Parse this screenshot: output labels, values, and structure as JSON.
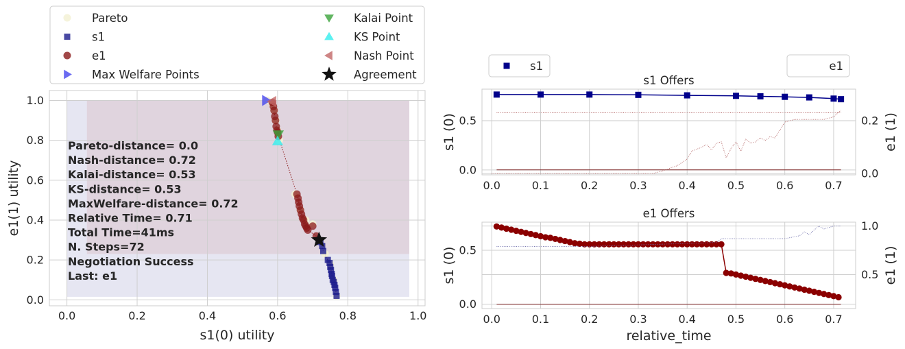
{
  "chart_data": [
    {
      "id": "utility",
      "type": "scatter",
      "xlabel": "s1(0) utility",
      "ylabel": "e1(1) utility",
      "xlim": [
        -0.05,
        1.02
      ],
      "ylim": [
        -0.03,
        1.05
      ],
      "xticks": [
        "0.0",
        "0.2",
        "0.4",
        "0.6",
        "0.8",
        "1.0"
      ],
      "yticks": [
        "0.0",
        "0.2",
        "0.4",
        "0.6",
        "0.8",
        "1.0"
      ],
      "grid": true,
      "legend": [
        {
          "label": "Pareto",
          "marker": "circle",
          "color": "#f3f0d2"
        },
        {
          "label": "s1",
          "marker": "square",
          "color": "#1c1c8c"
        },
        {
          "label": "e1",
          "marker": "circle",
          "color": "#8b1a1a"
        },
        {
          "label": "Max Welfare Points",
          "marker": "triangle-right",
          "color": "#4646ee"
        },
        {
          "label": "Kalai Point",
          "marker": "triangle-down",
          "color": "#3aa33a"
        },
        {
          "label": "KS Point",
          "marker": "triangle-up",
          "color": "#33eeee"
        },
        {
          "label": "Nash Point",
          "marker": "triangle-left",
          "color": "#c26767"
        },
        {
          "label": "Agreement",
          "marker": "star",
          "color": "#111111"
        }
      ],
      "regions": [
        {
          "x": [
            0.0,
            0.975
          ],
          "y": [
            0.015,
            1.0
          ],
          "color": "#e6e6f2"
        },
        {
          "x": [
            0.057,
            0.975
          ],
          "y": [
            0.23,
            1.0
          ],
          "color": "#e0d4de"
        }
      ],
      "stats_text": [
        "Pareto-distance=  0.0",
        "Nash-distance= 0.72",
        "Kalai-distance= 0.53",
        "KS-distance= 0.53",
        "MaxWelfare-distance= 0.72",
        "Relative Time= 0.71",
        "Total Time=41ms",
        "N. Steps=72",
        "Negotiation Success",
        "Last: e1"
      ],
      "pareto": [
        [
          0.57,
          1.0
        ],
        [
          0.585,
          0.98
        ],
        [
          0.59,
          0.95
        ],
        [
          0.595,
          0.9
        ],
        [
          0.6,
          0.85
        ],
        [
          0.605,
          0.8
        ],
        [
          0.65,
          0.53
        ],
        [
          0.665,
          0.45
        ],
        [
          0.68,
          0.4
        ],
        [
          0.7,
          0.38
        ],
        [
          0.72,
          0.3
        ],
        [
          0.735,
          0.23
        ],
        [
          0.75,
          0.18
        ],
        [
          0.76,
          0.1
        ],
        [
          0.768,
          0.02
        ]
      ],
      "s1_offers": [
        [
          0.718,
          0.3
        ],
        [
          0.722,
          0.29
        ],
        [
          0.727,
          0.27
        ],
        [
          0.73,
          0.245
        ],
        [
          0.743,
          0.2
        ],
        [
          0.748,
          0.185
        ],
        [
          0.75,
          0.165
        ],
        [
          0.752,
          0.15
        ],
        [
          0.754,
          0.13
        ],
        [
          0.755,
          0.12
        ],
        [
          0.757,
          0.1
        ],
        [
          0.76,
          0.09
        ],
        [
          0.762,
          0.075
        ],
        [
          0.764,
          0.06
        ],
        [
          0.766,
          0.04
        ],
        [
          0.768,
          0.02
        ]
      ],
      "e1_offers": [
        [
          0.585,
          0.99
        ],
        [
          0.588,
          0.97
        ],
        [
          0.59,
          0.95
        ],
        [
          0.592,
          0.92
        ],
        [
          0.594,
          0.9
        ],
        [
          0.596,
          0.87
        ],
        [
          0.598,
          0.85
        ],
        [
          0.6,
          0.84
        ],
        [
          0.602,
          0.82
        ],
        [
          0.655,
          0.53
        ],
        [
          0.658,
          0.51
        ],
        [
          0.66,
          0.49
        ],
        [
          0.662,
          0.47
        ],
        [
          0.665,
          0.45
        ],
        [
          0.668,
          0.43
        ],
        [
          0.671,
          0.41
        ],
        [
          0.674,
          0.4
        ],
        [
          0.677,
          0.38
        ],
        [
          0.68,
          0.37
        ],
        [
          0.683,
          0.36
        ],
        [
          0.686,
          0.35
        ],
        [
          0.7,
          0.37
        ],
        [
          0.71,
          0.32
        ]
      ],
      "max_welfare": [
        [
          0.567,
          1.0
        ]
      ],
      "kalai": [
        [
          0.602,
          0.83
        ]
      ],
      "ks": [
        [
          0.6,
          0.795
        ]
      ],
      "nash": [
        [
          0.585,
          0.995
        ]
      ],
      "agreement": [
        [
          0.718,
          0.3
        ]
      ]
    },
    {
      "id": "s1_offers",
      "type": "line",
      "title": "s1 Offers",
      "ylabel": "s1 (0)",
      "ylabel2": "e1 (1)",
      "xlim": [
        -0.02,
        0.745
      ],
      "ylim": [
        -0.05,
        0.82
      ],
      "ylim2": [
        -0.005,
        0.32
      ],
      "xticks": [
        "0.0",
        "0.1",
        "0.2",
        "0.3",
        "0.4",
        "0.5",
        "0.6",
        "0.7"
      ],
      "yticks": [
        "0.0",
        "0.5"
      ],
      "yticks2": [
        "0.0",
        "0.2"
      ],
      "legend_left": "s1",
      "legend_right": "e1",
      "series": [
        {
          "name": "s1",
          "axis": "left",
          "style": "line-square",
          "color": "#00008b",
          "x": [
            0.01,
            0.1,
            0.2,
            0.3,
            0.4,
            0.5,
            0.55,
            0.6,
            0.65,
            0.7,
            0.715
          ],
          "y": [
            0.765,
            0.765,
            0.765,
            0.762,
            0.757,
            0.752,
            0.747,
            0.742,
            0.736,
            0.724,
            0.718
          ]
        },
        {
          "axis": "left",
          "style": "dotted",
          "color": "#b06060",
          "x": [
            0.01,
            0.715
          ],
          "y": [
            0.58,
            0.58
          ]
        },
        {
          "axis": "left",
          "style": "solid-thin",
          "color": "#7a2020",
          "x": [
            0.01,
            0.715
          ],
          "y": [
            0.0,
            0.0
          ]
        },
        {
          "axis": "right",
          "style": "dotted",
          "color": "#b06060",
          "x": [
            0.0,
            0.33,
            0.35,
            0.38,
            0.4,
            0.41,
            0.43,
            0.44,
            0.45,
            0.46,
            0.47,
            0.48,
            0.49,
            0.5,
            0.51,
            0.52,
            0.53,
            0.54,
            0.55,
            0.56,
            0.57,
            0.58,
            0.59,
            0.6,
            0.62,
            0.65,
            0.68,
            0.7,
            0.715
          ],
          "y": [
            0.0,
            0.0,
            0.01,
            0.03,
            0.055,
            0.085,
            0.1,
            0.11,
            0.09,
            0.115,
            0.12,
            0.06,
            0.095,
            0.12,
            0.085,
            0.13,
            0.115,
            0.12,
            0.135,
            0.125,
            0.14,
            0.135,
            0.165,
            0.195,
            0.205,
            0.205,
            0.205,
            0.215,
            0.24
          ]
        }
      ]
    },
    {
      "id": "e1_offers",
      "type": "line",
      "title": "e1 Offers",
      "xlabel": "relative_time",
      "ylabel": "s1 (0)",
      "ylabel2": "e1 (1)",
      "xlim": [
        -0.02,
        0.745
      ],
      "ylim": [
        -0.04,
        0.76
      ],
      "ylim2": [
        0.15,
        1.04
      ],
      "xticks": [
        "0.0",
        "0.1",
        "0.2",
        "0.3",
        "0.4",
        "0.5",
        "0.6",
        "0.7"
      ],
      "yticks": [
        "0.0",
        "0.5"
      ],
      "yticks2": [
        "0.5",
        "1.0"
      ],
      "series": [
        {
          "name": "e1",
          "axis": "left",
          "style": "line-circle",
          "color": "#8b0000",
          "x": [
            0.01,
            0.02,
            0.03,
            0.04,
            0.05,
            0.06,
            0.07,
            0.08,
            0.09,
            0.1,
            0.11,
            0.12,
            0.13,
            0.14,
            0.15,
            0.16,
            0.17,
            0.18,
            0.19,
            0.2,
            0.21,
            0.22,
            0.23,
            0.24,
            0.25,
            0.26,
            0.27,
            0.28,
            0.29,
            0.3,
            0.31,
            0.32,
            0.33,
            0.34,
            0.35,
            0.36,
            0.37,
            0.38,
            0.39,
            0.4,
            0.41,
            0.42,
            0.43,
            0.44,
            0.45,
            0.46,
            0.47,
            0.48,
            0.49,
            0.5,
            0.51,
            0.52,
            0.53,
            0.54,
            0.55,
            0.56,
            0.57,
            0.58,
            0.59,
            0.6,
            0.61,
            0.62,
            0.63,
            0.64,
            0.65,
            0.66,
            0.67,
            0.68,
            0.69,
            0.7,
            0.71
          ],
          "y": [
            0.72,
            0.71,
            0.7,
            0.69,
            0.68,
            0.67,
            0.66,
            0.65,
            0.64,
            0.63,
            0.62,
            0.615,
            0.605,
            0.595,
            0.585,
            0.575,
            0.565,
            0.56,
            0.555,
            0.555,
            0.555,
            0.555,
            0.555,
            0.555,
            0.555,
            0.555,
            0.555,
            0.555,
            0.555,
            0.555,
            0.555,
            0.555,
            0.555,
            0.555,
            0.555,
            0.555,
            0.555,
            0.555,
            0.555,
            0.555,
            0.555,
            0.555,
            0.555,
            0.555,
            0.555,
            0.555,
            0.555,
            0.29,
            0.285,
            0.275,
            0.265,
            0.255,
            0.245,
            0.235,
            0.225,
            0.215,
            0.205,
            0.195,
            0.185,
            0.175,
            0.165,
            0.155,
            0.145,
            0.135,
            0.125,
            0.115,
            0.105,
            0.095,
            0.085,
            0.075,
            0.065
          ]
        },
        {
          "axis": "left",
          "style": "solid-thin",
          "color": "#7a2020",
          "x": [
            0.01,
            0.715
          ],
          "y": [
            0.0,
            0.0
          ]
        },
        {
          "axis": "right",
          "style": "dotted",
          "color": "#6a6aa8",
          "x": [
            0.01,
            0.2,
            0.46,
            0.47,
            0.5,
            0.6,
            0.63,
            0.64,
            0.65,
            0.66,
            0.67,
            0.68,
            0.7,
            0.715
          ],
          "y": [
            0.79,
            0.79,
            0.83,
            0.87,
            0.87,
            0.87,
            0.9,
            0.94,
            0.91,
            0.96,
            1.0,
            0.97,
            1.0,
            1.0
          ]
        }
      ]
    }
  ]
}
